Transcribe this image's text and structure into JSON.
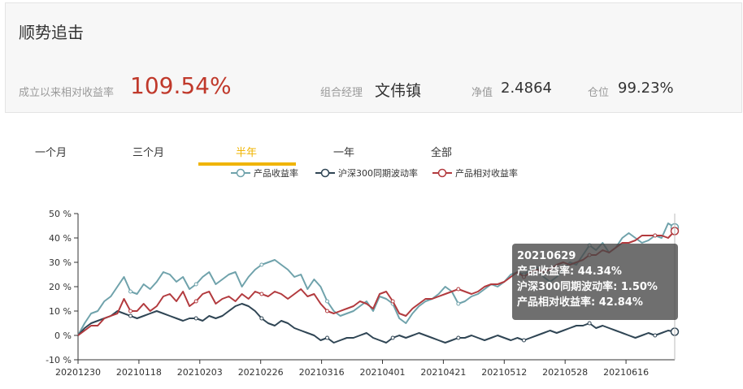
{
  "fund": {
    "name": "顺势追击",
    "relative_return_label": "成立以来相对收益率",
    "relative_return_value": "109.54%",
    "manager_label": "组合经理",
    "manager_value": "文伟镇",
    "nav_label": "净值",
    "nav_value": "2.4864",
    "position_label": "仓位",
    "position_value": "99.23%"
  },
  "tabs": [
    {
      "label": "一个月",
      "active": false
    },
    {
      "label": "三个月",
      "active": false
    },
    {
      "label": "半年",
      "active": true
    },
    {
      "label": "一年",
      "active": false
    },
    {
      "label": "全部",
      "active": false
    }
  ],
  "colors": {
    "product_return": "#6fa2ab",
    "csi300_volatility": "#2f4554",
    "product_relative_return": "#b23a3e",
    "accent": "#f0b400"
  },
  "tooltip": {
    "date": "20210629",
    "line1": "产品收益率: 44.34%",
    "line2": "沪深300同期波动率: 1.50%",
    "line3": "产品相对收益率: 42.84%"
  },
  "chart_data": {
    "type": "line",
    "title": "",
    "xlabel": "",
    "ylabel": "",
    "ylim": [
      -10,
      50
    ],
    "y_ticks": [
      "50 %",
      "40 %",
      "30 %",
      "20 %",
      "10 %",
      "0 %",
      "-10 %"
    ],
    "x_ticks": [
      "20201230",
      "20210118",
      "20210203",
      "20210226",
      "20210316",
      "20210401",
      "20210421",
      "20210512",
      "20210528",
      "20210616"
    ],
    "legend_position": "top",
    "series": [
      {
        "name": "产品收益率",
        "values": [
          0,
          5,
          9,
          10,
          14,
          16,
          20,
          24,
          18,
          17,
          21,
          19,
          22,
          26,
          25,
          22,
          24,
          19,
          21,
          24,
          26,
          21,
          23,
          25,
          26,
          20,
          24,
          27,
          29,
          30,
          31,
          29,
          27,
          24,
          25,
          19,
          23,
          20,
          14,
          10,
          8,
          9,
          10,
          12,
          14,
          10,
          16,
          15,
          13,
          7,
          5,
          9,
          12,
          14,
          15,
          17,
          20,
          18,
          13,
          14,
          16,
          17,
          19,
          21,
          20,
          22,
          25,
          26,
          25,
          27,
          28,
          24,
          22,
          24,
          27,
          30,
          29,
          33,
          37,
          35,
          38,
          34,
          36,
          40,
          42,
          40,
          38,
          39,
          41,
          40,
          46,
          44.34
        ]
      },
      {
        "name": "沪深300同期波动率",
        "values": [
          0,
          3,
          5,
          6,
          7,
          8,
          10,
          9,
          8,
          7,
          8,
          9,
          10,
          9,
          8,
          7,
          6,
          7,
          7,
          6,
          8,
          7,
          8,
          10,
          12,
          13,
          12,
          10,
          7,
          5,
          4,
          6,
          5,
          3,
          2,
          1,
          0,
          -2,
          -1,
          -3,
          -2,
          -1,
          -1,
          0,
          1,
          -1,
          -2,
          -3,
          -1,
          0,
          -1,
          0,
          1,
          0,
          -1,
          -2,
          -3,
          -2,
          -1,
          -1,
          0,
          -1,
          -2,
          -1,
          0,
          -1,
          -2,
          -1,
          -2,
          -1,
          0,
          1,
          2,
          1,
          2,
          3,
          4,
          4,
          5,
          3,
          4,
          3,
          2,
          1,
          0,
          -1,
          0,
          1,
          0,
          1,
          2,
          1.5
        ]
      },
      {
        "name": "产品相对收益率",
        "values": [
          0,
          2,
          4,
          4,
          7,
          8,
          9,
          15,
          10,
          10,
          13,
          10,
          12,
          16,
          17,
          14,
          18,
          12,
          14,
          17,
          18,
          13,
          15,
          16,
          14,
          17,
          15,
          18,
          17,
          16,
          18,
          17,
          15,
          17,
          19,
          16,
          17,
          13,
          10,
          9,
          10,
          11,
          12,
          14,
          13,
          11,
          17,
          18,
          14,
          9,
          8,
          11,
          13,
          15,
          15,
          16,
          17,
          18,
          19,
          18,
          17,
          18,
          20,
          21,
          21,
          22,
          24,
          26,
          24,
          26,
          27,
          26,
          27,
          29,
          30,
          29,
          30,
          31,
          33,
          33,
          35,
          34,
          36,
          38,
          38,
          39,
          41,
          41,
          41,
          41,
          40,
          42.84
        ]
      }
    ]
  }
}
